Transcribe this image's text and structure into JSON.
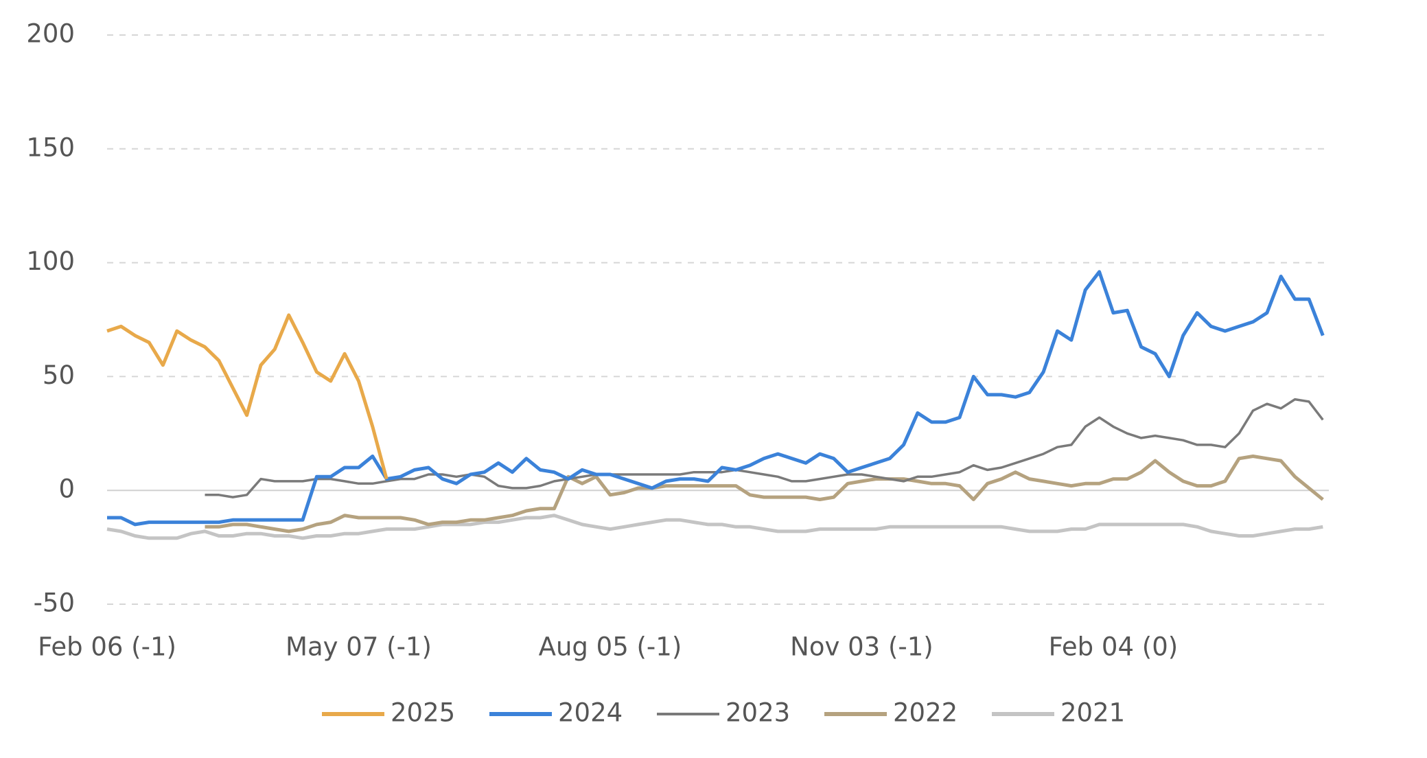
{
  "chart_data": {
    "type": "line",
    "categories": [
      "Feb 06 (-1)",
      null,
      null,
      null,
      null,
      null,
      null,
      null,
      null,
      null,
      null,
      null,
      null,
      null,
      null,
      null,
      null,
      null,
      "May 07 (-1)",
      null,
      null,
      null,
      null,
      null,
      null,
      null,
      null,
      null,
      null,
      null,
      null,
      null,
      null,
      null,
      null,
      null,
      "Aug 05 (-1)",
      null,
      null,
      null,
      null,
      null,
      null,
      null,
      null,
      null,
      null,
      null,
      null,
      null,
      null,
      null,
      null,
      null,
      "Nov 03 (-1)",
      null,
      null,
      null,
      null,
      null,
      null,
      null,
      null,
      null,
      null,
      null,
      null,
      null,
      null,
      null,
      null,
      null,
      "Feb 04 (0)",
      null,
      null,
      null,
      null,
      null,
      null,
      null,
      null,
      null,
      null,
      null,
      null,
      null,
      null,
      null
    ],
    "ylim": [
      -50,
      200
    ],
    "yticks": [
      -50,
      0,
      50,
      100,
      150,
      200
    ],
    "grid": true,
    "legend": "bottom",
    "series": [
      {
        "name": "2025",
        "color": "#e8a94a",
        "values": [
          70,
          72,
          68,
          65,
          55,
          70,
          66,
          63,
          57,
          45,
          33,
          55,
          62,
          77,
          65,
          52,
          48,
          60,
          48,
          28,
          5,
          null,
          null,
          null,
          null,
          null,
          null,
          null,
          null,
          null,
          null,
          null,
          null,
          null,
          null,
          null,
          null,
          null,
          null,
          null,
          null,
          null,
          null,
          null,
          null,
          null,
          null,
          null,
          null,
          null,
          null,
          null,
          null,
          null,
          null,
          null,
          null,
          null,
          null,
          null,
          null,
          null,
          null,
          null,
          null,
          null,
          null,
          null,
          null,
          null,
          null,
          null,
          null,
          null,
          null,
          null,
          null,
          null,
          null,
          null,
          null,
          null,
          null,
          null,
          null,
          null,
          null,
          null
        ]
      },
      {
        "name": "2024",
        "color": "#3b82d9",
        "values": [
          -12,
          -12,
          -15,
          -14,
          -14,
          -14,
          -14,
          -14,
          -14,
          -13,
          -13,
          -13,
          -13,
          -13,
          -13,
          6,
          6,
          10,
          10,
          15,
          5,
          6,
          9,
          10,
          5,
          3,
          7,
          8,
          12,
          8,
          14,
          9,
          8,
          5,
          9,
          7,
          7,
          5,
          3,
          1,
          4,
          5,
          5,
          4,
          10,
          9,
          11,
          14,
          16,
          14,
          12,
          16,
          14,
          8,
          10,
          12,
          14,
          20,
          34,
          30,
          30,
          32,
          50,
          42,
          42,
          41,
          43,
          52,
          70,
          66,
          88,
          96,
          78,
          79,
          63,
          60,
          50,
          68,
          78,
          72,
          70,
          72,
          74,
          78,
          94,
          84,
          84,
          68
        ]
      },
      {
        "name": "2023",
        "color": "#7a7a7a",
        "values": [
          null,
          null,
          null,
          null,
          null,
          null,
          null,
          -2,
          -2,
          -3,
          -2,
          5,
          4,
          4,
          4,
          5,
          5,
          4,
          3,
          3,
          4,
          5,
          5,
          7,
          7,
          6,
          7,
          6,
          2,
          1,
          1,
          2,
          4,
          5,
          6,
          7,
          7,
          7,
          7,
          7,
          7,
          7,
          8,
          8,
          8,
          9,
          8,
          7,
          6,
          4,
          4,
          5,
          6,
          7,
          7,
          6,
          5,
          4,
          6,
          6,
          7,
          8,
          11,
          9,
          10,
          12,
          14,
          16,
          19,
          20,
          28,
          32,
          28,
          25,
          23,
          24,
          23,
          22,
          20,
          20,
          19,
          25,
          35,
          38,
          36,
          40,
          39,
          31
        ]
      },
      {
        "name": "2022",
        "color": "#b5a27f",
        "values": [
          null,
          null,
          null,
          null,
          null,
          null,
          null,
          -16,
          -16,
          -15,
          -15,
          -16,
          -17,
          -18,
          -17,
          -15,
          -14,
          -11,
          -12,
          -12,
          -12,
          -12,
          -13,
          -15,
          -14,
          -14,
          -13,
          -13,
          -12,
          -11,
          -9,
          -8,
          -8,
          6,
          3,
          6,
          -2,
          -1,
          1,
          1,
          2,
          2,
          2,
          2,
          2,
          2,
          -2,
          -3,
          -3,
          -3,
          -3,
          -4,
          -3,
          3,
          4,
          5,
          5,
          5,
          4,
          3,
          3,
          2,
          -4,
          3,
          5,
          8,
          5,
          4,
          3,
          2,
          3,
          3,
          5,
          5,
          8,
          13,
          8,
          4,
          2,
          2,
          4,
          14,
          15,
          14,
          13,
          6,
          1,
          -4
        ]
      },
      {
        "name": "2021",
        "color": "#c4c4c4",
        "values": [
          -17,
          -18,
          -20,
          -21,
          -21,
          -21,
          -19,
          -18,
          -20,
          -20,
          -19,
          -19,
          -20,
          -20,
          -21,
          -20,
          -20,
          -19,
          -19,
          -18,
          -17,
          -17,
          -17,
          -16,
          -15,
          -15,
          -15,
          -14,
          -14,
          -13,
          -12,
          -12,
          -11,
          -13,
          -15,
          -16,
          -17,
          -16,
          -15,
          -14,
          -13,
          -13,
          -14,
          -15,
          -15,
          -16,
          -16,
          -17,
          -18,
          -18,
          -18,
          -17,
          -17,
          -17,
          -17,
          -17,
          -16,
          -16,
          -16,
          -16,
          -16,
          -16,
          -16,
          -16,
          -16,
          -17,
          -18,
          -18,
          -18,
          -17,
          -17,
          -15,
          -15,
          -15,
          -15,
          -15,
          -15,
          -15,
          -16,
          -18,
          -19,
          -20,
          -20,
          -19,
          -18,
          -17,
          -17,
          -16
        ]
      }
    ]
  }
}
